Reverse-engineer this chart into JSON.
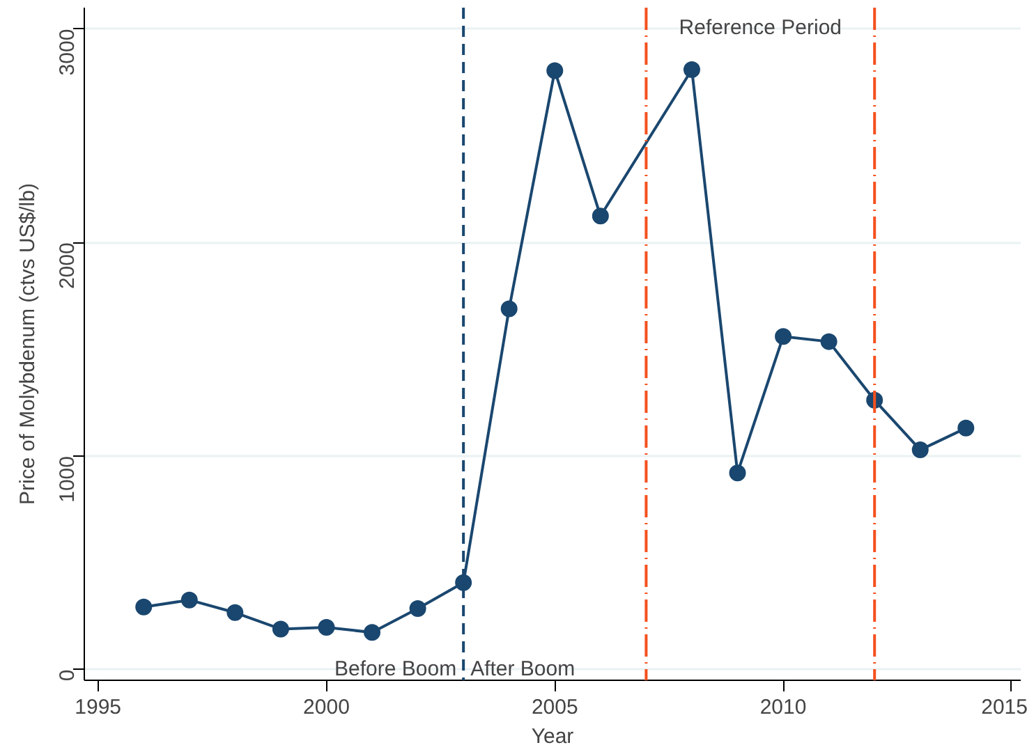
{
  "chart_data": {
    "type": "line",
    "xlabel": "Year",
    "ylabel": "Price of Molybdenum (ctvs US$/lb)",
    "x": [
      1996,
      1997,
      1998,
      1999,
      2000,
      2001,
      2002,
      2003,
      2004,
      2005,
      2006,
      2008,
      2009,
      2010,
      2011,
      2012,
      2013,
      2014
    ],
    "series": [
      {
        "color": "#1a476f",
        "values": [
          293,
          326,
          267,
          190,
          198,
          174,
          286,
          407,
          1690,
          2805,
          2124,
          2810,
          921,
          1560,
          1536,
          1262,
          1029,
          1131
        ]
      }
    ],
    "xlim": [
      1994.7,
      2015.2
    ],
    "ylim": [
      -50,
      3100
    ],
    "xticks": [
      1995,
      2000,
      2005,
      2010,
      2015
    ],
    "yticks": [
      0,
      1000,
      2000,
      3000
    ],
    "grid": "y",
    "marker": "circle",
    "line_style": "solid",
    "ref_lines": [
      {
        "axis": "x",
        "value": 2003,
        "color": "#1a476f",
        "line_style": "dashed"
      },
      {
        "axis": "x",
        "value": 2007,
        "color": "#f4511e",
        "line_style": "dashdot"
      },
      {
        "axis": "x",
        "value": 2012,
        "color": "#f4511e",
        "line_style": "dashdot"
      }
    ],
    "annotations": [
      "Before Boom",
      "After Boom",
      "Reference Period"
    ]
  }
}
